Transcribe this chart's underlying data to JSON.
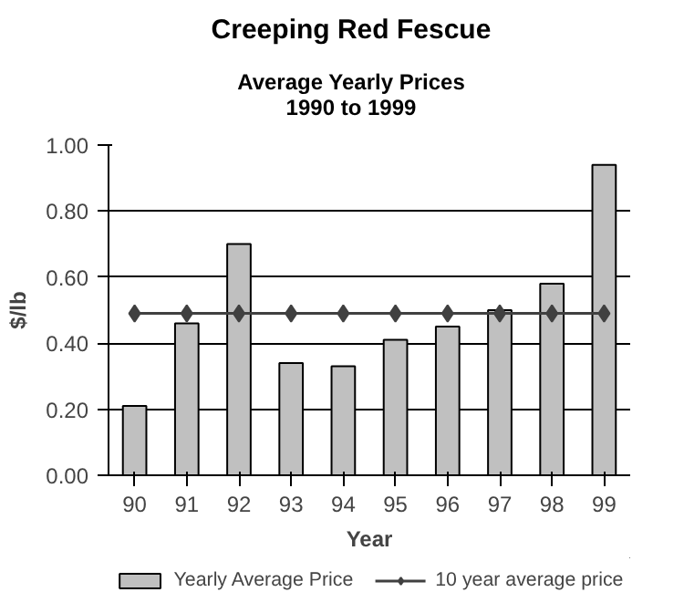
{
  "chart_data": {
    "type": "bar",
    "title": "Creeping Red Fescue",
    "subtitle": "Average Yearly Prices\n1990 to 1999",
    "xlabel": "Year",
    "ylabel": "$/lb",
    "categories": [
      "90",
      "91",
      "92",
      "93",
      "94",
      "95",
      "96",
      "97",
      "98",
      "99"
    ],
    "series": [
      {
        "name": "Yearly Average Price",
        "color": "#c0c0c0",
        "values": [
          0.21,
          0.46,
          0.7,
          0.34,
          0.33,
          0.41,
          0.45,
          0.5,
          0.58,
          0.94
        ]
      },
      {
        "name": "10 year average price",
        "type": "line",
        "color": "#404040",
        "marker": "diamond",
        "values": [
          0.49,
          0.49,
          0.49,
          0.49,
          0.49,
          0.49,
          0.49,
          0.49,
          0.49,
          0.49
        ]
      }
    ],
    "ylim": [
      0,
      1
    ],
    "yticks": [
      {
        "value": 0,
        "label": "0.00"
      },
      {
        "value": 0.2,
        "label": "0.20"
      },
      {
        "value": 0.4,
        "label": "0.40"
      },
      {
        "value": 0.6,
        "label": "0.60"
      },
      {
        "value": 0.8,
        "label": "0.80"
      },
      {
        "value": 1,
        "label": "1.00"
      }
    ],
    "grid": "y",
    "legend": "bottom"
  }
}
